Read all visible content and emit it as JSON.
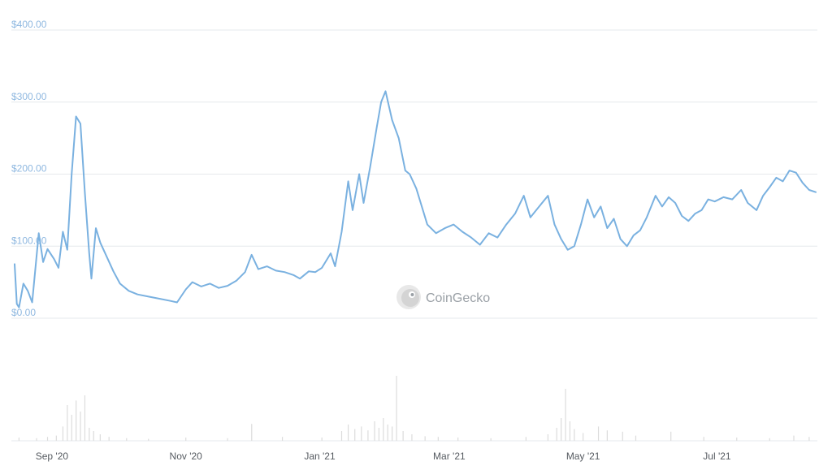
{
  "colors": {
    "line": "#7ab1e0",
    "grid": "#e6e9ec",
    "ytick": "#8fb8e0",
    "xtick": "#555a60",
    "volume": "#dcdcdc",
    "watermark": "#9aa0a6"
  },
  "watermark": {
    "text": "CoinGecko",
    "icon": "gecko-logo-icon"
  },
  "chart_data": [
    {
      "type": "line",
      "name": "price",
      "x_axis": "date",
      "xlim": [
        "2020-08-15",
        "2021-08-15"
      ],
      "ylim": [
        0,
        400
      ],
      "yticks": [
        0,
        100,
        200,
        300,
        400
      ],
      "ytick_labels": [
        "$0.00",
        "$100.00",
        "$200.00",
        "$300.00",
        "$400.00"
      ],
      "xtick_dates": [
        "2020-09-01",
        "2020-11-01",
        "2021-01-01",
        "2021-03-01",
        "2021-05-01",
        "2021-07-01"
      ],
      "xtick_labels": [
        "Sep '20",
        "Nov '20",
        "Jan '21",
        "Mar '21",
        "May '21",
        "Jul '21"
      ],
      "grid": "horizontal",
      "series": [
        {
          "points": [
            [
              "2020-08-15",
              75
            ],
            [
              "2020-08-16",
              20
            ],
            [
              "2020-08-17",
              15
            ],
            [
              "2020-08-19",
              48
            ],
            [
              "2020-08-21",
              38
            ],
            [
              "2020-08-23",
              22
            ],
            [
              "2020-08-26",
              118
            ],
            [
              "2020-08-28",
              78
            ],
            [
              "2020-08-30",
              96
            ],
            [
              "2020-09-02",
              82
            ],
            [
              "2020-09-04",
              70
            ],
            [
              "2020-09-06",
              120
            ],
            [
              "2020-09-08",
              95
            ],
            [
              "2020-09-10",
              200
            ],
            [
              "2020-09-12",
              280
            ],
            [
              "2020-09-14",
              270
            ],
            [
              "2020-09-16",
              175
            ],
            [
              "2020-09-18",
              90
            ],
            [
              "2020-09-19",
              55
            ],
            [
              "2020-09-21",
              125
            ],
            [
              "2020-09-23",
              105
            ],
            [
              "2020-09-26",
              85
            ],
            [
              "2020-09-29",
              65
            ],
            [
              "2020-10-02",
              48
            ],
            [
              "2020-10-06",
              38
            ],
            [
              "2020-10-10",
              33
            ],
            [
              "2020-10-15",
              30
            ],
            [
              "2020-10-20",
              27
            ],
            [
              "2020-10-25",
              24
            ],
            [
              "2020-10-28",
              22
            ],
            [
              "2020-11-01",
              40
            ],
            [
              "2020-11-04",
              50
            ],
            [
              "2020-11-08",
              44
            ],
            [
              "2020-11-12",
              48
            ],
            [
              "2020-11-16",
              42
            ],
            [
              "2020-11-20",
              45
            ],
            [
              "2020-11-24",
              52
            ],
            [
              "2020-11-28",
              64
            ],
            [
              "2020-12-01",
              88
            ],
            [
              "2020-12-04",
              68
            ],
            [
              "2020-12-08",
              72
            ],
            [
              "2020-12-12",
              66
            ],
            [
              "2020-12-16",
              64
            ],
            [
              "2020-12-20",
              60
            ],
            [
              "2020-12-23",
              55
            ],
            [
              "2020-12-27",
              65
            ],
            [
              "2020-12-30",
              64
            ],
            [
              "2021-01-02",
              70
            ],
            [
              "2021-01-06",
              90
            ],
            [
              "2021-01-08",
              72
            ],
            [
              "2021-01-11",
              120
            ],
            [
              "2021-01-14",
              190
            ],
            [
              "2021-01-16",
              150
            ],
            [
              "2021-01-19",
              200
            ],
            [
              "2021-01-21",
              160
            ],
            [
              "2021-01-24",
              210
            ],
            [
              "2021-01-27",
              265
            ],
            [
              "2021-01-29",
              300
            ],
            [
              "2021-01-31",
              315
            ],
            [
              "2021-02-03",
              275
            ],
            [
              "2021-02-06",
              250
            ],
            [
              "2021-02-09",
              205
            ],
            [
              "2021-02-11",
              200
            ],
            [
              "2021-02-14",
              180
            ],
            [
              "2021-02-16",
              160
            ],
            [
              "2021-02-19",
              130
            ],
            [
              "2021-02-23",
              118
            ],
            [
              "2021-02-27",
              125
            ],
            [
              "2021-03-03",
              130
            ],
            [
              "2021-03-07",
              120
            ],
            [
              "2021-03-11",
              112
            ],
            [
              "2021-03-15",
              102
            ],
            [
              "2021-03-19",
              118
            ],
            [
              "2021-03-23",
              112
            ],
            [
              "2021-03-27",
              130
            ],
            [
              "2021-03-31",
              145
            ],
            [
              "2021-04-04",
              170
            ],
            [
              "2021-04-07",
              140
            ],
            [
              "2021-04-11",
              155
            ],
            [
              "2021-04-15",
              170
            ],
            [
              "2021-04-18",
              130
            ],
            [
              "2021-04-21",
              110
            ],
            [
              "2021-04-24",
              95
            ],
            [
              "2021-04-27",
              100
            ],
            [
              "2021-04-30",
              130
            ],
            [
              "2021-05-03",
              165
            ],
            [
              "2021-05-06",
              140
            ],
            [
              "2021-05-09",
              155
            ],
            [
              "2021-05-12",
              125
            ],
            [
              "2021-05-15",
              138
            ],
            [
              "2021-05-18",
              110
            ],
            [
              "2021-05-21",
              100
            ],
            [
              "2021-05-24",
              115
            ],
            [
              "2021-05-27",
              122
            ],
            [
              "2021-05-30",
              140
            ],
            [
              "2021-06-03",
              170
            ],
            [
              "2021-06-06",
              155
            ],
            [
              "2021-06-09",
              168
            ],
            [
              "2021-06-12",
              160
            ],
            [
              "2021-06-15",
              142
            ],
            [
              "2021-06-18",
              135
            ],
            [
              "2021-06-21",
              145
            ],
            [
              "2021-06-24",
              150
            ],
            [
              "2021-06-27",
              165
            ],
            [
              "2021-06-30",
              162
            ],
            [
              "2021-07-04",
              168
            ],
            [
              "2021-07-08",
              165
            ],
            [
              "2021-07-12",
              178
            ],
            [
              "2021-07-15",
              160
            ],
            [
              "2021-07-19",
              150
            ],
            [
              "2021-07-22",
              170
            ],
            [
              "2021-07-25",
              182
            ],
            [
              "2021-07-28",
              195
            ],
            [
              "2021-07-31",
              190
            ],
            [
              "2021-08-03",
              205
            ],
            [
              "2021-08-06",
              202
            ],
            [
              "2021-08-09",
              188
            ],
            [
              "2021-08-12",
              178
            ],
            [
              "2021-08-15",
              175
            ]
          ]
        }
      ]
    },
    {
      "type": "bar",
      "name": "volume",
      "x_axis": "date",
      "xlim": [
        "2020-08-15",
        "2021-08-15"
      ],
      "ylim": [
        0,
        1
      ],
      "yscale_note": "relative",
      "points": [
        [
          "2020-08-17",
          0.05
        ],
        [
          "2020-08-25",
          0.04
        ],
        [
          "2020-08-30",
          0.06
        ],
        [
          "2020-09-03",
          0.08
        ],
        [
          "2020-09-06",
          0.22
        ],
        [
          "2020-09-08",
          0.55
        ],
        [
          "2020-09-10",
          0.4
        ],
        [
          "2020-09-12",
          0.62
        ],
        [
          "2020-09-14",
          0.45
        ],
        [
          "2020-09-16",
          0.7
        ],
        [
          "2020-09-18",
          0.2
        ],
        [
          "2020-09-20",
          0.15
        ],
        [
          "2020-09-23",
          0.1
        ],
        [
          "2020-09-27",
          0.06
        ],
        [
          "2020-10-05",
          0.04
        ],
        [
          "2020-10-15",
          0.03
        ],
        [
          "2020-11-01",
          0.05
        ],
        [
          "2020-11-20",
          0.04
        ],
        [
          "2020-12-01",
          0.26
        ],
        [
          "2020-12-15",
          0.06
        ],
        [
          "2021-01-02",
          0.05
        ],
        [
          "2021-01-11",
          0.15
        ],
        [
          "2021-01-14",
          0.25
        ],
        [
          "2021-01-17",
          0.18
        ],
        [
          "2021-01-20",
          0.22
        ],
        [
          "2021-01-23",
          0.16
        ],
        [
          "2021-01-26",
          0.3
        ],
        [
          "2021-01-28",
          0.2
        ],
        [
          "2021-01-30",
          0.35
        ],
        [
          "2021-02-01",
          0.25
        ],
        [
          "2021-02-03",
          0.22
        ],
        [
          "2021-02-05",
          1.0
        ],
        [
          "2021-02-08",
          0.15
        ],
        [
          "2021-02-12",
          0.1
        ],
        [
          "2021-02-18",
          0.07
        ],
        [
          "2021-02-24",
          0.06
        ],
        [
          "2021-03-05",
          0.05
        ],
        [
          "2021-03-20",
          0.04
        ],
        [
          "2021-04-05",
          0.06
        ],
        [
          "2021-04-15",
          0.1
        ],
        [
          "2021-04-19",
          0.2
        ],
        [
          "2021-04-21",
          0.35
        ],
        [
          "2021-04-23",
          0.8
        ],
        [
          "2021-04-25",
          0.3
        ],
        [
          "2021-04-27",
          0.18
        ],
        [
          "2021-05-01",
          0.12
        ],
        [
          "2021-05-08",
          0.22
        ],
        [
          "2021-05-12",
          0.16
        ],
        [
          "2021-05-19",
          0.14
        ],
        [
          "2021-05-25",
          0.08
        ],
        [
          "2021-06-10",
          0.14
        ],
        [
          "2021-06-25",
          0.06
        ],
        [
          "2021-07-10",
          0.05
        ],
        [
          "2021-07-25",
          0.04
        ],
        [
          "2021-08-05",
          0.08
        ],
        [
          "2021-08-12",
          0.06
        ]
      ]
    }
  ]
}
